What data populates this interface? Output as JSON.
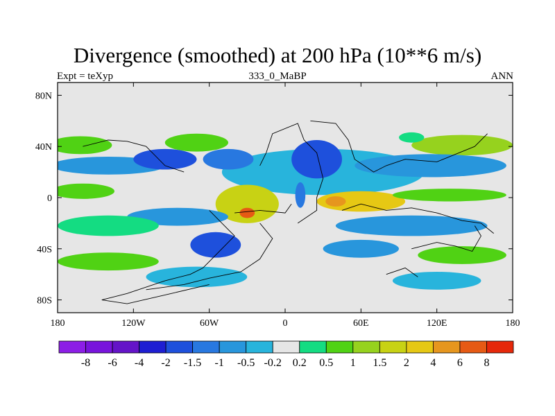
{
  "title": "Divergence (smoothed) at 200 hPa (10**6 m/s)",
  "left_string": "Expt = teXyp",
  "center_string": "333_0_MaBP",
  "right_string": "ANN",
  "chart_data": {
    "type": "heatmap",
    "x_ticks": [
      "180",
      "120W",
      "60W",
      "0",
      "60E",
      "120E",
      "180"
    ],
    "y_ticks": [
      "80N",
      "40N",
      "0",
      "40S",
      "80S"
    ],
    "xlim": [
      -180,
      180
    ],
    "ylim": [
      -90,
      90
    ],
    "colorbar": {
      "levels": [
        "-8",
        "-6",
        "-4",
        "-2",
        "-1.5",
        "-1",
        "-0.5",
        "-0.2",
        "0.2",
        "0.5",
        "1",
        "1.5",
        "2",
        "4",
        "6",
        "8"
      ],
      "colors": [
        "#8c1ee6",
        "#7814dc",
        "#6414c8",
        "#1e1ed2",
        "#1e50dc",
        "#2878e0",
        "#2896dc",
        "#28b4dc",
        "#e6e6e6",
        "#14dc82",
        "#50d214",
        "#96d21e",
        "#c8d214",
        "#e6c814",
        "#e6961e",
        "#e65a14",
        "#e6280a"
      ]
    },
    "anomaly_regions": [
      {
        "lon": 30,
        "lat": 20,
        "lon_r": 80,
        "lat_r": 18,
        "value": -0.3
      },
      {
        "lon": -162,
        "lat": 41,
        "lon_r": 25,
        "lat_r": 7,
        "value": 0.8
      },
      {
        "lon": -70,
        "lat": 43,
        "lon_r": 25,
        "lat_r": 7,
        "value": 0.8
      },
      {
        "lon": 140,
        "lat": 41,
        "lon_r": 40,
        "lat_r": 8,
        "value": 1.1
      },
      {
        "lon": 100,
        "lat": 47,
        "lon_r": 10,
        "lat_r": 4,
        "value": 0.4
      },
      {
        "lon": -140,
        "lat": 25,
        "lon_r": 45,
        "lat_r": 7,
        "value": -0.7
      },
      {
        "lon": -95,
        "lat": 30,
        "lon_r": 25,
        "lat_r": 8,
        "value": -1.8
      },
      {
        "lon": -45,
        "lat": 30,
        "lon_r": 20,
        "lat_r": 8,
        "value": -1.2
      },
      {
        "lon": 25,
        "lat": 30,
        "lon_r": 20,
        "lat_r": 15,
        "value": -1.6
      },
      {
        "lon": 115,
        "lat": 25,
        "lon_r": 60,
        "lat_r": 9,
        "value": -0.8
      },
      {
        "lon": -160,
        "lat": 5,
        "lon_r": 25,
        "lat_r": 6,
        "value": 0.6
      },
      {
        "lon": -30,
        "lat": -5,
        "lon_r": 25,
        "lat_r": 15,
        "value": 1.8
      },
      {
        "lon": -30,
        "lat": -12,
        "lon_r": 6,
        "lat_r": 4,
        "value": 6.0
      },
      {
        "lon": 60,
        "lat": -3,
        "lon_r": 35,
        "lat_r": 8,
        "value": 2.2
      },
      {
        "lon": 40,
        "lat": -3,
        "lon_r": 8,
        "lat_r": 4,
        "value": 5.0
      },
      {
        "lon": 130,
        "lat": 2,
        "lon_r": 45,
        "lat_r": 5,
        "value": 0.8
      },
      {
        "lon": 12,
        "lat": 2,
        "lon_r": 4,
        "lat_r": 10,
        "value": -1.5
      },
      {
        "lon": -85,
        "lat": -15,
        "lon_r": 40,
        "lat_r": 7,
        "value": -0.9
      },
      {
        "lon": 100,
        "lat": -22,
        "lon_r": 60,
        "lat_r": 8,
        "value": -0.6
      },
      {
        "lon": -140,
        "lat": -22,
        "lon_r": 40,
        "lat_r": 8,
        "value": 0.4
      },
      {
        "lon": -55,
        "lat": -37,
        "lon_r": 20,
        "lat_r": 10,
        "value": -1.6
      },
      {
        "lon": 60,
        "lat": -40,
        "lon_r": 30,
        "lat_r": 7,
        "value": -0.6
      },
      {
        "lon": -140,
        "lat": -50,
        "lon_r": 40,
        "lat_r": 7,
        "value": 0.7
      },
      {
        "lon": 140,
        "lat": -45,
        "lon_r": 35,
        "lat_r": 7,
        "value": 0.6
      },
      {
        "lon": -70,
        "lat": -62,
        "lon_r": 40,
        "lat_r": 8,
        "value": -0.5
      },
      {
        "lon": 120,
        "lat": -65,
        "lon_r": 35,
        "lat_r": 7,
        "value": -0.4
      }
    ],
    "map_outlines": [
      [
        [
          -160,
          40
        ],
        [
          -140,
          45
        ],
        [
          -125,
          44
        ],
        [
          -110,
          40
        ],
        [
          -105,
          35
        ],
        [
          -95,
          25
        ],
        [
          -80,
          20
        ]
      ],
      [
        [
          -60,
          -10
        ],
        [
          -50,
          -20
        ],
        [
          -40,
          -30
        ],
        [
          -55,
          -45
        ],
        [
          -65,
          -55
        ],
        [
          -75,
          -60
        ],
        [
          -95,
          -65
        ],
        [
          -125,
          -75
        ],
        [
          -145,
          -80
        ],
        [
          -125,
          -83
        ],
        [
          -90,
          -75
        ],
        [
          -60,
          -68
        ]
      ],
      [
        [
          -20,
          -20
        ],
        [
          -10,
          -32
        ],
        [
          -20,
          -48
        ],
        [
          -35,
          -58
        ],
        [
          -60,
          -63
        ],
        [
          -80,
          -68
        ],
        [
          -110,
          -72
        ]
      ],
      [
        [
          -20,
          25
        ],
        [
          -15,
          35
        ],
        [
          -10,
          50
        ],
        [
          10,
          58
        ],
        [
          15,
          45
        ],
        [
          25,
          35
        ],
        [
          30,
          15
        ],
        [
          25,
          0
        ],
        [
          25,
          -10
        ],
        [
          10,
          -20
        ]
      ],
      [
        [
          20,
          60
        ],
        [
          40,
          58
        ],
        [
          50,
          45
        ],
        [
          55,
          30
        ],
        [
          70,
          20
        ],
        [
          80,
          25
        ],
        [
          95,
          30
        ],
        [
          120,
          28
        ],
        [
          150,
          40
        ],
        [
          160,
          50
        ]
      ],
      [
        [
          -40,
          -12
        ],
        [
          -20,
          -10
        ],
        [
          0,
          -12
        ],
        [
          5,
          -5
        ]
      ],
      [
        [
          45,
          -10
        ],
        [
          60,
          -5
        ],
        [
          80,
          -10
        ],
        [
          100,
          -8
        ],
        [
          120,
          -12
        ],
        [
          140,
          -18
        ],
        [
          155,
          -20
        ],
        [
          165,
          -28
        ]
      ],
      [
        [
          100,
          -40
        ],
        [
          120,
          -35
        ],
        [
          135,
          -38
        ],
        [
          148,
          -42
        ],
        [
          155,
          -30
        ],
        [
          150,
          -22
        ]
      ],
      [
        [
          80,
          -60
        ],
        [
          95,
          -55
        ],
        [
          105,
          -62
        ]
      ]
    ]
  }
}
